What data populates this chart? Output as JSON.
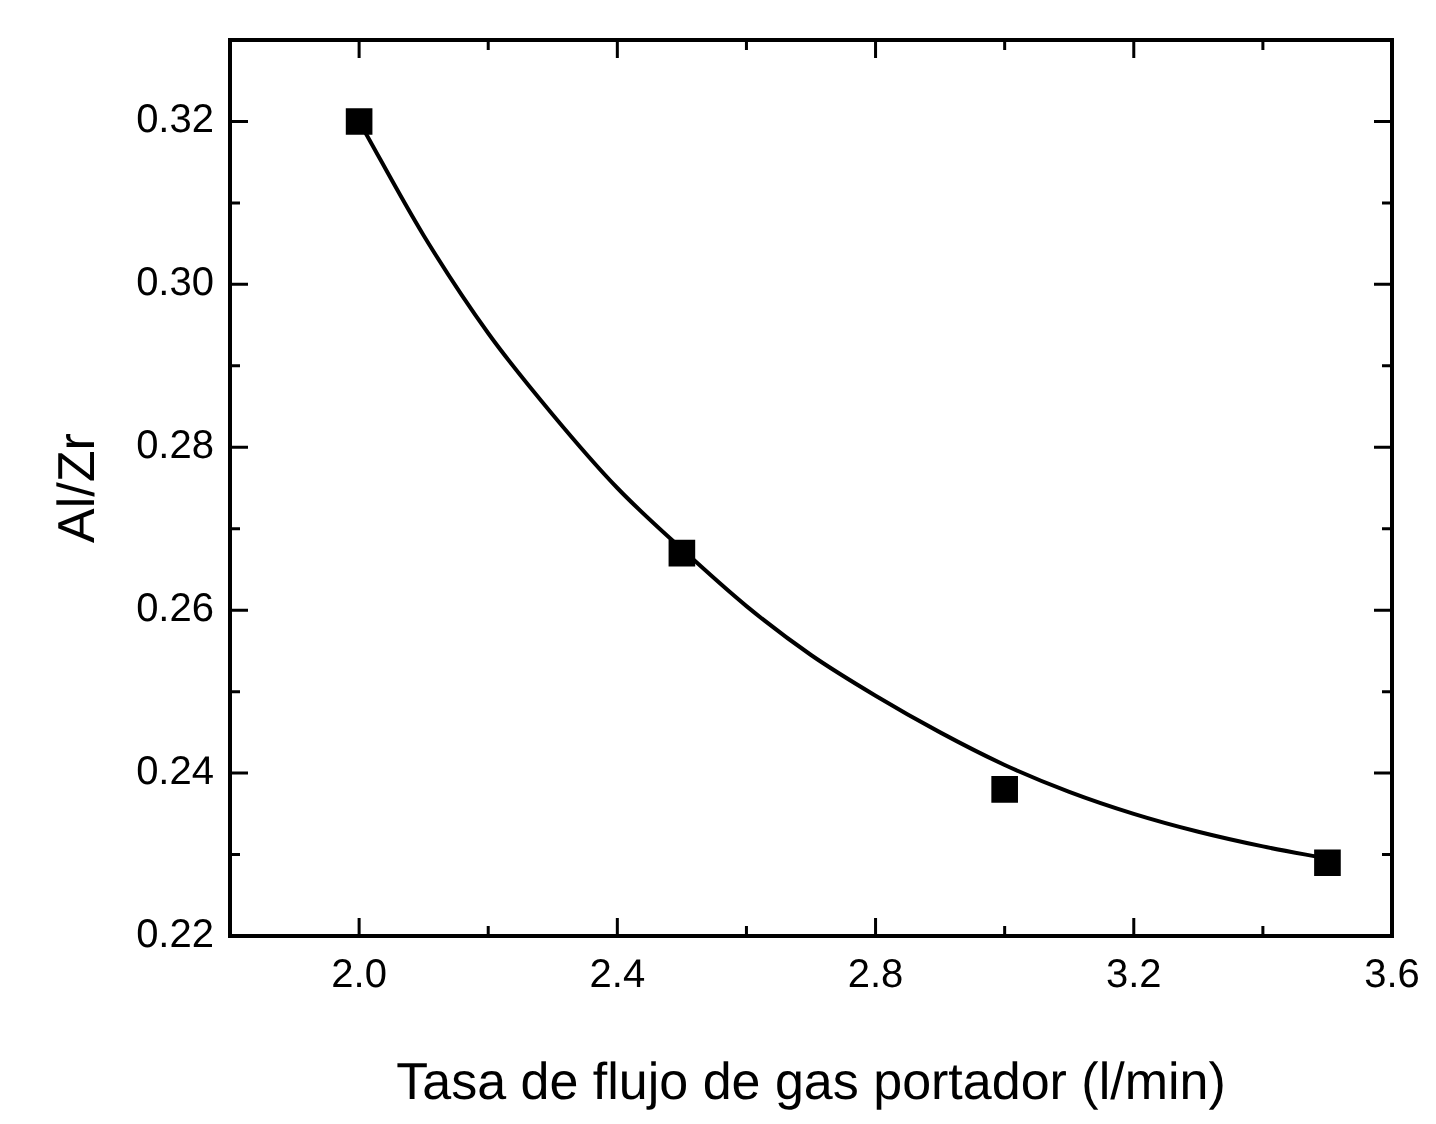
{
  "chart_data": {
    "type": "scatter",
    "xlabel": "Tasa de flujo de gas portador (l/min)",
    "ylabel": "Al/Zr",
    "xlim": [
      1.8,
      3.6
    ],
    "ylim": [
      0.22,
      0.33
    ],
    "xticks": [
      {
        "value": 2.0,
        "label": "2.0"
      },
      {
        "value": 2.2,
        "label": null
      },
      {
        "value": 2.4,
        "label": "2.4"
      },
      {
        "value": 2.6,
        "label": null
      },
      {
        "value": 2.8,
        "label": "2.8"
      },
      {
        "value": 3.0,
        "label": null
      },
      {
        "value": 3.2,
        "label": "3.2"
      },
      {
        "value": 3.4,
        "label": null
      },
      {
        "value": 3.6,
        "label": "3.6"
      }
    ],
    "yticks": [
      0.22,
      {
        "value": 0.23,
        "label": null
      },
      0.24,
      {
        "value": 0.25,
        "label": null
      },
      0.26,
      {
        "value": 0.27,
        "label": null
      },
      0.28,
      {
        "value": 0.29,
        "label": null
      },
      {
        "value": 0.3,
        "label": "0.30"
      },
      {
        "value": 0.31,
        "label": null
      },
      0.32
    ],
    "grid": false,
    "legend": false,
    "series": [
      {
        "type": "scatter",
        "color": "#000000",
        "marker": "square",
        "x": [
          2.0,
          2.5,
          3.0,
          3.5
        ],
        "values": [
          0.32,
          0.267,
          0.238,
          0.229
        ]
      },
      {
        "type": "line",
        "color": "#000000",
        "marker": "none",
        "line_style": "solid",
        "x": [
          2.0,
          2.1,
          2.2,
          2.3,
          2.4,
          2.5,
          2.6,
          2.7,
          2.8,
          2.9,
          3.0,
          3.1,
          3.2,
          3.3,
          3.4,
          3.5
        ],
        "values": [
          0.32,
          0.306,
          0.294,
          0.284,
          0.275,
          0.2675,
          0.2605,
          0.2545,
          0.2495,
          0.245,
          0.241,
          0.2377,
          0.235,
          0.2328,
          0.231,
          0.2295
        ]
      }
    ]
  }
}
